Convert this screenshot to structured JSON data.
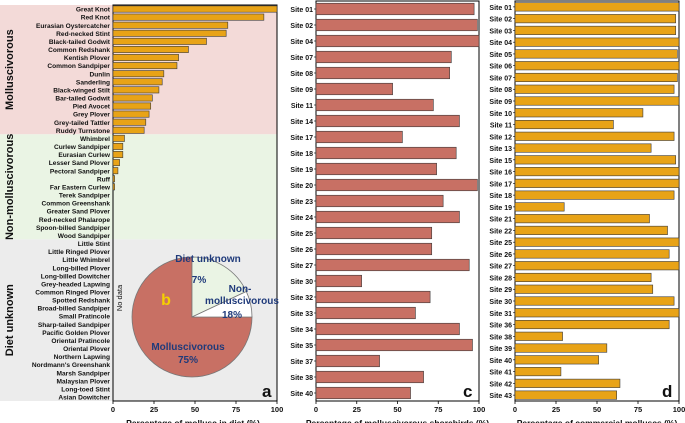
{
  "panels": {
    "a_label": "a",
    "b_label": "b",
    "c_label": "c",
    "d_label": "d"
  },
  "chart_data": [
    {
      "panel": "a",
      "type": "bar",
      "orientation": "horizontal",
      "xlabel": "Percentage of mollusc in diet (%)",
      "xlim": [
        0,
        100
      ],
      "xticks": [
        0,
        25,
        50,
        75,
        100
      ],
      "bar_color": "#e8a317",
      "groups": [
        {
          "name": "Molluscivorous",
          "bg_color": "#f3dad8",
          "categories": [
            "Great Knot",
            "Red Knot",
            "Eurasian Oystercatcher",
            "Red-necked Stint",
            "Black-tailed Godwit",
            "Common Redshank",
            "Kentish Plover",
            "Common Sandpiper",
            "Dunlin",
            "Sanderling",
            "Black-winged Stilt",
            "Bar-tailed Godwit",
            "Pied Avocet",
            "Grey Plover",
            "Grey-tailed Tattler",
            "Ruddy Turnstone"
          ],
          "values": [
            100,
            92,
            70,
            69,
            57,
            46,
            40,
            39,
            31,
            30,
            28,
            24,
            23,
            22,
            20,
            19
          ]
        },
        {
          "name": "Non-molluscivorous",
          "bg_color": "#eaf4e4",
          "categories": [
            "Whimbrel",
            "Curlew Sandpiper",
            "Eurasian Curlew",
            "Lesser Sand Plover",
            "Pectoral Sandpiper",
            "Ruff",
            "Far Eastern Curlew",
            "Terek Sandpiper",
            "Common Greenshank",
            "Greater Sand Plover",
            "Red-necked Phalarope",
            "Spoon-billed Sandpiper",
            "Wood Sandpiper"
          ],
          "values": [
            7,
            6,
            6,
            4,
            3,
            1,
            1,
            0,
            0,
            0,
            0,
            0,
            0
          ]
        },
        {
          "name": "Diet unknown",
          "bg_color": "#ececec",
          "categories": [
            "Little Stint",
            "Little Ringed Plover",
            "Little Whimbrel",
            "Long-billed Plover",
            "Long-billed Dowitcher",
            "Grey-headed Lapwing",
            "Common Ringed Plover",
            "Spotted Redshank",
            "Broad-billed Sandpiper",
            "Small Pratincole",
            "Sharp-tailed Sandpiper",
            "Pacific Golden Plover",
            "Oriental Pratincole",
            "Oriental Plover",
            "Northern Lapwing",
            "Nordmann's Greenshank",
            "Marsh Sandpiper",
            "Malaysian Plover",
            "Long-toed Stint",
            "Asian Dowitcher"
          ],
          "values": [
            0,
            0,
            0,
            0,
            0,
            0,
            0,
            0,
            0,
            0,
            0,
            0,
            0,
            0,
            0,
            0,
            0,
            0,
            0,
            0
          ]
        }
      ],
      "annotation": "No data"
    },
    {
      "panel": "b",
      "type": "pie",
      "slices": [
        {
          "label": "Molluscivorous",
          "pct_label": "75%",
          "value": 75,
          "color": "#c87064"
        },
        {
          "label": "Non-molluscivorous",
          "label_lines": [
            "Non-",
            "molluscivorous"
          ],
          "pct_label": "18%",
          "value": 18,
          "color": "#eaf4e4"
        },
        {
          "label": "Diet unknown",
          "pct_label": "7%",
          "value": 7,
          "color": "#ffffff"
        }
      ]
    },
    {
      "panel": "c",
      "type": "bar",
      "orientation": "horizontal",
      "xlabel": "Percentage of molluscivorous shorebirds (%)",
      "xlim": [
        0,
        100
      ],
      "xticks": [
        0,
        25,
        50,
        75,
        100
      ],
      "bar_color": "#c87064",
      "categories": [
        "Site 01",
        "Site 02",
        "Site 04",
        "Site 07",
        "Site 08",
        "Site 09",
        "Site 11",
        "Site 14",
        "Site 17",
        "Site 18",
        "Site 19",
        "Site 20",
        "Site 23",
        "Site 24",
        "Site 25",
        "Site 26",
        "Site 27",
        "Site 30",
        "Site 32",
        "Site 33",
        "Site 34",
        "Site 35",
        "Site 37",
        "Site 38",
        "Site 40"
      ],
      "values": [
        97,
        99,
        100,
        83,
        82,
        47,
        72,
        88,
        53,
        86,
        74,
        99,
        78,
        88,
        71,
        71,
        94,
        28,
        70,
        61,
        88,
        96,
        39,
        66,
        58
      ]
    },
    {
      "panel": "d",
      "type": "bar",
      "orientation": "horizontal",
      "xlabel": "Percentage of commercial molluscs (%)",
      "xlim": [
        0,
        100
      ],
      "xticks": [
        0,
        25,
        50,
        75,
        100
      ],
      "bar_color": "#e8a317",
      "categories": [
        "Site 01",
        "Site 02",
        "Site 03",
        "Site 04",
        "Site 05",
        "Site 06",
        "Site 07",
        "Site 08",
        "Site 09",
        "Site 10",
        "Site 11",
        "Site 12",
        "Site 13",
        "Site 15",
        "Site 16",
        "Site 17",
        "Site 18",
        "Site 19",
        "Site 21",
        "Site 22",
        "Site 25",
        "Site 26",
        "Site 27",
        "Site 28",
        "Site 29",
        "Site 30",
        "Site 31",
        "Site 36",
        "Site 38",
        "Site 39",
        "Site 40",
        "Site 41",
        "Site 42",
        "Site 43"
      ],
      "values": [
        100,
        98,
        98,
        100,
        99,
        100,
        99,
        97,
        100,
        78,
        60,
        97,
        83,
        98,
        100,
        100,
        97,
        30,
        82,
        93,
        100,
        94,
        100,
        83,
        84,
        97,
        100,
        94,
        29,
        56,
        51,
        28,
        64,
        62
      ]
    }
  ]
}
